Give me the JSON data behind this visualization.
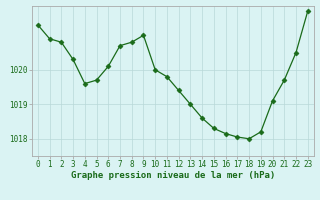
{
  "x": [
    0,
    1,
    2,
    3,
    4,
    5,
    6,
    7,
    8,
    9,
    10,
    11,
    12,
    13,
    14,
    15,
    16,
    17,
    18,
    19,
    20,
    21,
    22,
    23
  ],
  "y": [
    1021.3,
    1020.9,
    1020.8,
    1020.3,
    1019.6,
    1019.7,
    1020.1,
    1020.7,
    1020.8,
    1021.0,
    1020.0,
    1019.8,
    1019.4,
    1019.0,
    1018.6,
    1018.3,
    1018.15,
    1018.05,
    1018.0,
    1018.2,
    1019.1,
    1019.7,
    1020.5,
    1021.7
  ],
  "line_color": "#1a6b1a",
  "marker": "D",
  "marker_size": 2.5,
  "bg_color": "#daf3f3",
  "grid_color": "#b8d8d8",
  "axis_color": "#aaaaaa",
  "xlabel": "Graphe pression niveau de la mer (hPa)",
  "xlabel_color": "#1a6b1a",
  "ylim_min": 1017.5,
  "ylim_max": 1021.85,
  "yticks": [
    1018,
    1019,
    1020
  ],
  "xlim_min": -0.5,
  "xlim_max": 23.5,
  "tick_label_color": "#1a6b1a",
  "xlabel_fontsize": 6.5,
  "tick_fontsize": 5.5,
  "linewidth": 0.9
}
